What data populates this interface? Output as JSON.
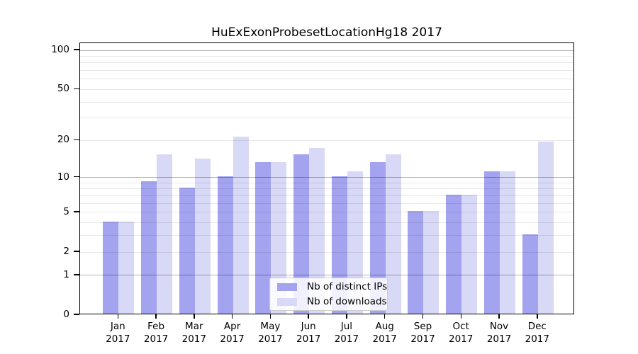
{
  "title": "HuExExonProbesetLocationHg18 2017",
  "chart_data": {
    "type": "bar",
    "title": "HuExExonProbesetLocationHg18 2017",
    "categories": [
      "Jan",
      "Feb",
      "Mar",
      "Apr",
      "May",
      "Jun",
      "Jul",
      "Aug",
      "Sep",
      "Oct",
      "Nov",
      "Dec"
    ],
    "x_year_label": "2017",
    "series": [
      {
        "name": "Nb of distinct IPs",
        "color": "#a3a3f0",
        "values": [
          4,
          9,
          8,
          10,
          13,
          15,
          10,
          13,
          5,
          7,
          11,
          3
        ]
      },
      {
        "name": "Nb of downloads",
        "color": "#d8d8f7",
        "values": [
          4,
          15,
          14,
          21,
          13,
          17,
          11,
          15,
          5,
          7,
          11,
          19
        ]
      }
    ],
    "xlabel": "",
    "ylabel": "",
    "y_scale": "log1p",
    "ylim": [
      0,
      113
    ],
    "y_ticks": [
      0,
      1,
      2,
      5,
      10,
      20,
      50,
      100
    ],
    "grid_minor_values": [
      2,
      3,
      4,
      5,
      6,
      7,
      8,
      9,
      20,
      30,
      40,
      50,
      60,
      70,
      80,
      90
    ],
    "grid_major_values": [
      1,
      10,
      100
    ],
    "grid": "on",
    "legend_position": "inside lower center",
    "colors": {
      "distinct_ips_bar": "#a3a3f0",
      "downloads_bar": "#d8d8f7",
      "grid_minor": "rgba(0,0,0,0.09)",
      "grid_major": "rgba(0,0,0,0.30)",
      "axis": "#000000",
      "legend_border": "#cccccc"
    }
  }
}
